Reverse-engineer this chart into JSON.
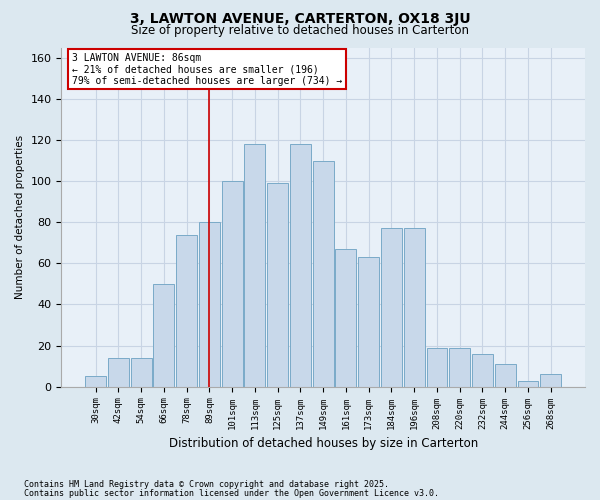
{
  "title": "3, LAWTON AVENUE, CARTERTON, OX18 3JU",
  "subtitle": "Size of property relative to detached houses in Carterton",
  "xlabel": "Distribution of detached houses by size in Carterton",
  "ylabel": "Number of detached properties",
  "footnote1": "Contains HM Land Registry data © Crown copyright and database right 2025.",
  "footnote2": "Contains public sector information licensed under the Open Government Licence v3.0.",
  "bar_labels": [
    "30sqm",
    "42sqm",
    "54sqm",
    "66sqm",
    "78sqm",
    "89sqm",
    "101sqm",
    "113sqm",
    "125sqm",
    "137sqm",
    "149sqm",
    "161sqm",
    "173sqm",
    "184sqm",
    "196sqm",
    "208sqm",
    "220sqm",
    "232sqm",
    "244sqm",
    "256sqm",
    "268sqm"
  ],
  "bar_values": [
    5,
    14,
    14,
    50,
    74,
    80,
    100,
    118,
    99,
    118,
    110,
    67,
    63,
    77,
    77,
    19,
    19,
    16,
    11,
    3,
    6
  ],
  "bar_color": "#c8d8ea",
  "bar_edge_color": "#7aaac8",
  "vline_x": 5,
  "vline_color": "#cc0000",
  "annotation_text": "3 LAWTON AVENUE: 86sqm\n← 21% of detached houses are smaller (196)\n79% of semi-detached houses are larger (734) →",
  "annotation_box_facecolor": "#ffffff",
  "annotation_box_edgecolor": "#cc0000",
  "ylim": [
    0,
    165
  ],
  "yticks": [
    0,
    20,
    40,
    60,
    80,
    100,
    120,
    140,
    160
  ],
  "grid_color": "#c8d4e4",
  "bg_color": "#dce8f0",
  "plot_bg_color": "#e8f0f8",
  "title_fontsize": 10,
  "subtitle_fontsize": 8.5
}
